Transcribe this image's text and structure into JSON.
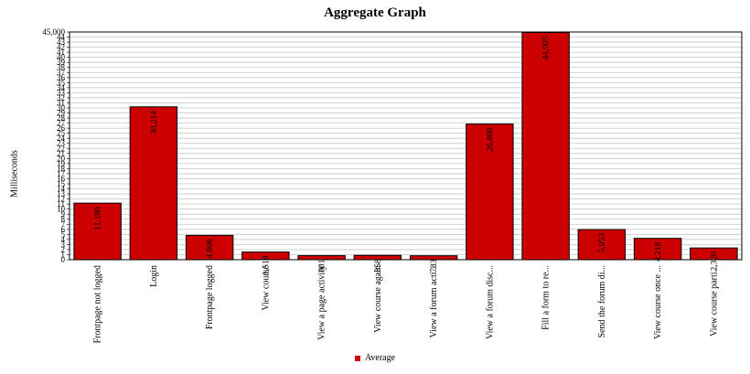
{
  "chart_data": {
    "type": "bar",
    "title": "Aggregate Graph",
    "xlabel": "",
    "ylabel": "Milliseconds",
    "categories": [
      "Frontpage not logged",
      "Login",
      "Frontpage logged",
      "View course",
      "View a page activity",
      "View course again",
      "View a forum acti...",
      "View a forum disc...",
      "Fill a form to re...",
      "Send the forum di...",
      "View course once ...",
      "View course parti..."
    ],
    "series": [
      {
        "name": "Average",
        "values": [
          11180,
          30214,
          4808,
          1518,
          801,
          858,
          783,
          26808,
          44905,
          5953,
          4218,
          2320
        ],
        "labels": [
          "11,180",
          "30,214",
          "4,808",
          "1,518",
          "801",
          "858",
          "783",
          "26,808",
          "44,905",
          "5,953",
          "4,218",
          "2,320"
        ],
        "color": "#cc0000"
      }
    ],
    "ylim": [
      0,
      45000
    ],
    "ytick_step": 1000,
    "top_tick_label": "45,000",
    "grid": true,
    "legend": "bottom"
  }
}
